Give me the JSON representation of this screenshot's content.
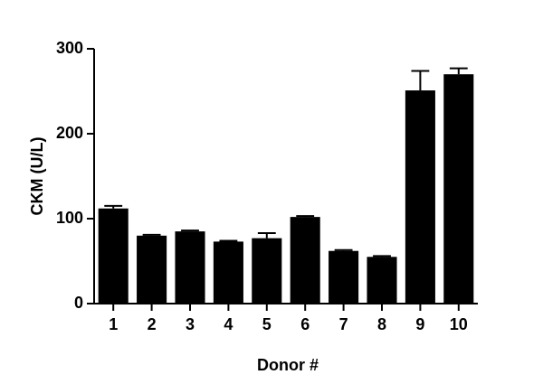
{
  "chart_data": {
    "type": "bar",
    "y_label": "CKM (U/L)",
    "x_label": "Donor #",
    "categories": [
      "1",
      "2",
      "3",
      "4",
      "5",
      "6",
      "7",
      "8",
      "9",
      "10"
    ],
    "values": [
      112,
      80,
      85,
      73,
      77,
      102,
      62,
      55,
      251,
      270
    ],
    "errors": [
      3,
      1,
      1,
      1,
      6,
      1,
      1,
      1,
      23,
      7
    ],
    "color": "#000000",
    "ylim": [
      0,
      300
    ],
    "yticks": [
      0,
      100,
      200,
      300
    ]
  }
}
